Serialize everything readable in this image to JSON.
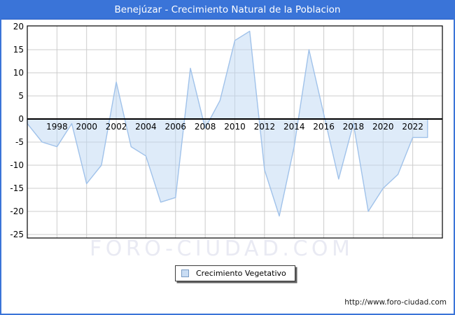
{
  "window": {
    "title": "Benejúzar - Crecimiento Natural de la Poblacion"
  },
  "legend": {
    "label": "Crecimiento Vegetativo"
  },
  "watermark": "FORO-CIUDAD.COM",
  "footer": {
    "url": "http://www.foro-ciudad.com"
  },
  "chart_data": {
    "type": "area",
    "title": "Benejúzar - Crecimiento Natural de la Poblacion",
    "series_name": "Crecimiento Vegetativo",
    "x": [
      1996,
      1997,
      1998,
      1999,
      2000,
      2001,
      2002,
      2003,
      2004,
      2005,
      2006,
      2007,
      2008,
      2009,
      2010,
      2011,
      2012,
      2013,
      2014,
      2015,
      2016,
      2017,
      2018,
      2019,
      2020,
      2021,
      2022,
      2023
    ],
    "values": [
      -1,
      -5,
      -6,
      -1,
      -14,
      -10,
      8,
      -6,
      -8,
      -18,
      -17,
      11,
      -2,
      4,
      17,
      19,
      -11,
      -21,
      -6,
      15,
      1,
      -13,
      -1,
      -20,
      -15,
      -12,
      -4,
      -4
    ],
    "xlim": [
      1996,
      2024
    ],
    "ylim": [
      -25,
      20
    ],
    "xticks": [
      1998,
      2000,
      2002,
      2004,
      2006,
      2008,
      2010,
      2012,
      2014,
      2016,
      2018,
      2020,
      2022
    ],
    "yticks": [
      20,
      15,
      10,
      5,
      0,
      -5,
      -10,
      -15,
      -20,
      -25
    ],
    "grid": true,
    "legend_position": "bottom-center",
    "colors": {
      "frame": "#3a74d8",
      "area_fill": "#bed7f3",
      "area_line": "#a0c2ea",
      "grid": "#cccccc",
      "axis": "#000000",
      "tick_text": "#000000"
    }
  }
}
